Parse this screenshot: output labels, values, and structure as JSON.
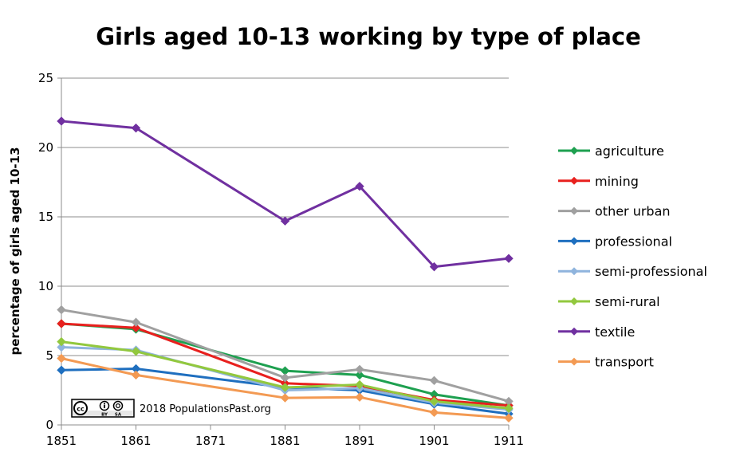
{
  "credit": "2018 PopulationsPast.org",
  "license_badge": {
    "icon": "cc-icon",
    "by": "BY",
    "sa": "SA"
  },
  "chart_data": {
    "type": "line",
    "title": "Girls aged 10-13 working by type of place",
    "xlabel": "",
    "ylabel": "percentage of girls aged 10-13",
    "x": [
      1851,
      1861,
      1871,
      1881,
      1891,
      1901,
      1911
    ],
    "x_tick_labels": [
      "1851",
      "1861",
      "1871",
      "1881",
      "1891",
      "1901",
      "1911"
    ],
    "ylim": [
      0,
      25
    ],
    "y_ticks": [
      0,
      5,
      10,
      15,
      20,
      25
    ],
    "grid": "horizontal",
    "legend_position": "right",
    "marker": "diamond",
    "series": [
      {
        "name": "agriculture",
        "color": "#1ea050",
        "values": [
          7.3,
          6.9,
          null,
          3.9,
          3.6,
          2.2,
          1.4
        ]
      },
      {
        "name": "mining",
        "color": "#e8201e",
        "values": [
          7.3,
          7.0,
          null,
          3.0,
          2.8,
          1.8,
          1.4
        ]
      },
      {
        "name": "other urban",
        "color": "#a0a0a0",
        "values": [
          8.3,
          7.4,
          null,
          3.4,
          4.0,
          3.2,
          1.7
        ]
      },
      {
        "name": "professional",
        "color": "#1f6fbf",
        "values": [
          3.95,
          4.05,
          null,
          2.7,
          2.5,
          1.5,
          0.8
        ]
      },
      {
        "name": "semi-professional",
        "color": "#8fb4dd",
        "values": [
          5.6,
          5.4,
          null,
          2.5,
          2.65,
          1.6,
          1.1
        ]
      },
      {
        "name": "semi-rural",
        "color": "#92c83e",
        "values": [
          6.0,
          5.3,
          null,
          2.7,
          2.9,
          1.7,
          1.2
        ]
      },
      {
        "name": "textile",
        "color": "#7030a0",
        "values": [
          21.9,
          21.4,
          null,
          14.7,
          17.2,
          11.4,
          12.0
        ]
      },
      {
        "name": "transport",
        "color": "#f39a53",
        "values": [
          4.8,
          3.6,
          null,
          1.95,
          2.0,
          0.9,
          0.5
        ]
      }
    ]
  }
}
